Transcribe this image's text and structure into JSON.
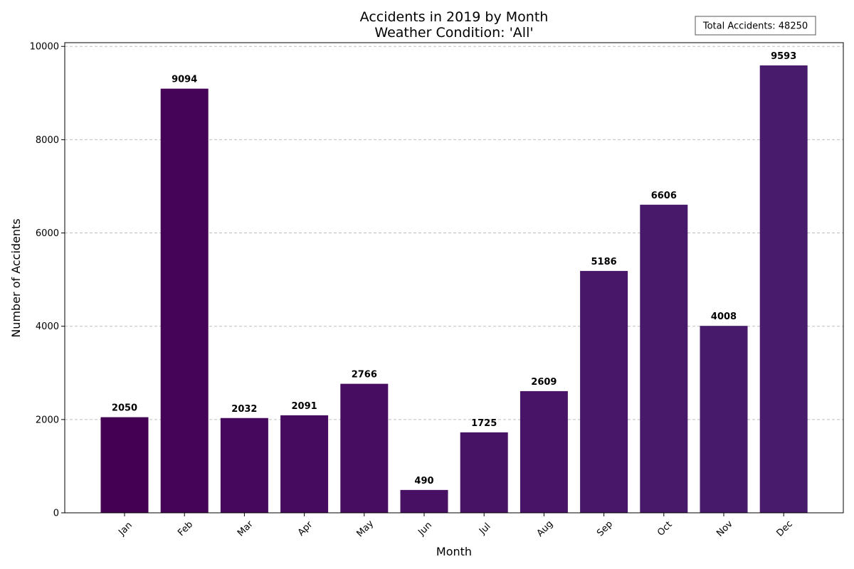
{
  "chart_data": {
    "type": "bar",
    "title": "Accidents in 2019 by Month",
    "subtitle": "Weather Condition: 'All'",
    "xlabel": "Month",
    "ylabel": "Number of Accidents",
    "categories": [
      "Jan",
      "Feb",
      "Mar",
      "Apr",
      "May",
      "Jun",
      "Jul",
      "Aug",
      "Sep",
      "Oct",
      "Nov",
      "Dec"
    ],
    "values": [
      2050,
      9094,
      2032,
      2091,
      2766,
      490,
      1725,
      2609,
      5186,
      6606,
      4008,
      9593
    ],
    "bar_colors": [
      "#440154",
      "#450457",
      "#46085c",
      "#460b5e",
      "#470d60",
      "#471063",
      "#471365",
      "#481467",
      "#481769",
      "#48186a",
      "#481a6c",
      "#481b6d"
    ],
    "ylim": [
      0,
      10080
    ],
    "yticks": [
      0,
      2000,
      4000,
      6000,
      8000,
      10000
    ],
    "ytick_labels": [
      "0",
      "2000",
      "4000",
      "6000",
      "8000",
      "10000"
    ],
    "grid": "y-dashed",
    "annotation": "Total Accidents: 48250",
    "annotation_position": "top-right"
  }
}
